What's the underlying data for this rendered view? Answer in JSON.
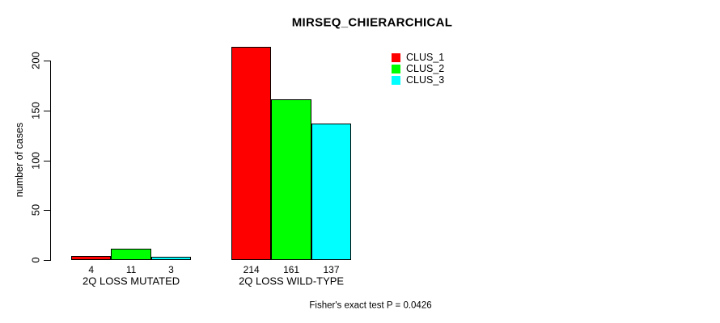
{
  "title": "MIRSEQ_CHIERARCHICAL",
  "annotation": "Fisher's exact test P = 0.0426",
  "chart_data": {
    "type": "bar",
    "title": "MIRSEQ_CHIERARCHICAL",
    "xlabel": "",
    "ylabel": "number of cases",
    "categories": [
      "2Q LOSS MUTATED",
      "2Q LOSS WILD-TYPE"
    ],
    "series": [
      {
        "name": "CLUS_1",
        "color": "#ff0000",
        "values": [
          4,
          214
        ]
      },
      {
        "name": "CLUS_2",
        "color": "#00ff00",
        "values": [
          11,
          161
        ]
      },
      {
        "name": "CLUS_3",
        "color": "#00ffff",
        "values": [
          3,
          137
        ]
      }
    ],
    "yticks": [
      0,
      50,
      100,
      150,
      200
    ],
    "ylim": [
      0,
      200
    ],
    "bar_value_labels": [
      [
        "4",
        "11",
        "3"
      ],
      [
        "214",
        "161",
        "137"
      ]
    ],
    "grid": false,
    "legend_position": "upper-right-inside",
    "annotation": "Fisher's exact test P = 0.0426"
  }
}
